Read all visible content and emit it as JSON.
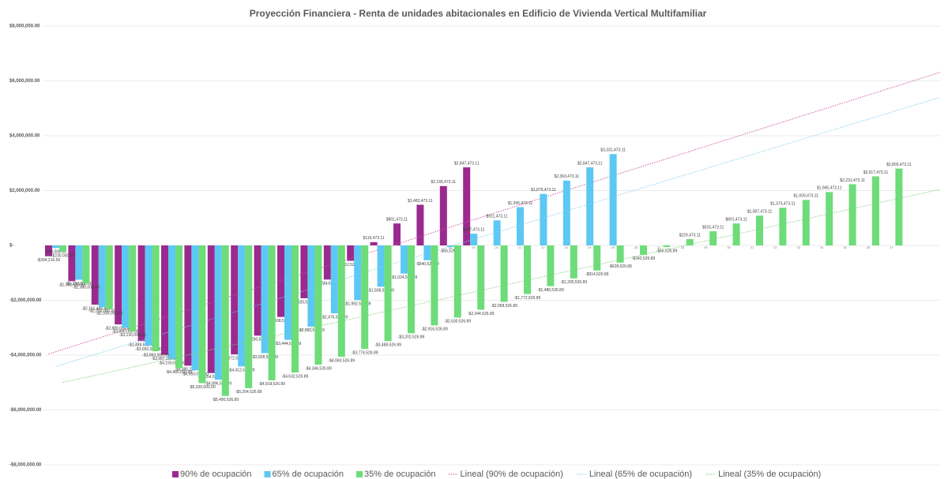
{
  "chart_data": {
    "type": "bar",
    "title": "Proyección Financiera - Renta de unidades abitacionales en Edificio de Vivienda Vertical Multifamiliar",
    "categories": [
      "1",
      "2",
      "3",
      "4",
      "5",
      "6",
      "7",
      "8",
      "9",
      "10",
      "11",
      "12",
      "13",
      "14",
      "15",
      "16",
      "17",
      "18",
      "19",
      "20",
      "21",
      "22",
      "23",
      "24",
      "25",
      "26",
      "27",
      "28",
      "29",
      "30",
      "31",
      "32",
      "33",
      "34",
      "35",
      "36",
      "37"
    ],
    "ylim": [
      -8000000,
      8000000
    ],
    "yticks": [
      {
        "value": -8000000,
        "label": "-$8,000,000.00"
      },
      {
        "value": -6000000,
        "label": "-$6,000,000.00"
      },
      {
        "value": -4000000,
        "label": "-$4,000,000.00"
      },
      {
        "value": -2000000,
        "label": "-$2,000,000.00"
      },
      {
        "value": 0,
        "label": "$-"
      },
      {
        "value": 2000000,
        "label": "$2,000,000.00"
      },
      {
        "value": 4000000,
        "label": "$4,000,000.00"
      },
      {
        "value": 6000000,
        "label": "$6,000,000.00"
      },
      {
        "value": 8000000,
        "label": "$8,000,000.00"
      }
    ],
    "grid": true,
    "legend": "bottom",
    "series": [
      {
        "name": "90% de ocupación",
        "color": "#9b2a8e",
        "trendline": {
          "name": "Lineal (90% de ocupación)",
          "color": "#c8509f"
        },
        "values": [
          -394216.56,
          -1302633.83,
          -2161449.44,
          -2880064.66,
          -3488683.44,
          -3987295.98,
          -4385213.46,
          -4654526.89,
          -3972526.89,
          -3290526.89,
          -2608526.89,
          -1926526.89,
          -1244526.89,
          -562526.89,
          119473.11,
          801473.11,
          1483473.11,
          2165473.11,
          2847473.11,
          null,
          null,
          null,
          null,
          null,
          null,
          null,
          null,
          null,
          null,
          null,
          null,
          null,
          null,
          null,
          null,
          null,
          null
        ],
        "value_labels": [
          "-$394,216.56",
          "-$1,302,633.83",
          "-$2,161,449.44",
          "-$2,880,064.66",
          "-$3,488,683.44",
          "-$3,987,295.98",
          "-$4,385,213.46",
          "-$4,654,526.89",
          "-$3,972,526.89",
          "-$3,290,526.89",
          "-$2,608,526.89",
          "-$1,926,526.89",
          "-$1,244,526.89",
          "-$562,526.89",
          "$119,473.11",
          "$801,473.11",
          "$1,483,473.11",
          "$2,165,473.11",
          "$2,847,473.11",
          null,
          null,
          null,
          null,
          null,
          null,
          null,
          null,
          null,
          null,
          null,
          null,
          null,
          null,
          null,
          null,
          null,
          null
        ]
      },
      {
        "name": "65% de ocupación",
        "color": "#5cc8f4",
        "trendline": {
          "name": "Lineal (65% de ocupación)",
          "color": "#80cdee"
        },
        "values": [
          -90000,
          -1250000,
          -2250000,
          -3000000,
          -3650000,
          -4150000,
          -4550000,
          -4896526.89,
          -4412526.89,
          -3928526.89,
          -3444526.89,
          -2960526.89,
          -2476526.89,
          -1992526.89,
          -1508526.89,
          -1024526.89,
          -540526.89,
          -56526.89,
          427473.11,
          911473.11,
          1395473.11,
          1879473.11,
          2363473.11,
          2847473.11,
          3331473.11,
          null,
          null,
          null,
          null,
          null,
          null,
          null,
          null,
          null,
          null,
          null,
          null
        ],
        "value_labels": [
          "-$90,000.00",
          "-$1,250,000.00",
          "-$2,250,000.00",
          "-$3,000,000.00",
          "-$3,650,000.00",
          "-$4,150,000.00",
          "-$4,550,000.00",
          "-$4,896,526.89",
          "-$4,412,526.89",
          "-$3,928,526.89",
          "-$3,444,526.89",
          "-$2,960,526.89",
          "-$2,476,526.89",
          "-$1,992,526.89",
          "-$1,508,526.89",
          "-$1,024,526.89",
          "-$540,526.89",
          "-$56,526.89",
          "$427,473.11",
          "$911,473.11",
          "$1,395,473.11",
          "$1,879,473.11",
          "$2,363,473.11",
          "$2,847,473.11",
          "$3,331,473.11",
          null,
          null,
          null,
          null,
          null,
          null,
          null,
          null,
          null,
          null,
          null,
          null
        ]
      },
      {
        "name": "35% de ocupación",
        "color": "#6ddc79",
        "trendline": {
          "name": "Lineal (35% de ocupación)",
          "color": "#7ccf7c"
        },
        "values": [
          -230000,
          -1380000,
          -2330000,
          -3130000,
          -3860000,
          -4480000,
          -5020000,
          -5490526.89,
          -5204526.89,
          -4918526.89,
          -4632526.89,
          -4346526.89,
          -4060526.89,
          -3774526.89,
          -3488526.89,
          -3202526.89,
          -2916526.89,
          -2630526.89,
          -2344526.89,
          -2058526.89,
          -1772526.89,
          -1486526.89,
          -1200526.89,
          -914526.89,
          -628526.89,
          -342526.89,
          -56526.89,
          229473.11,
          515473.11,
          801473.11,
          1087473.11,
          1373473.11,
          1659473.11,
          1945473.11,
          2231473.11,
          2517473.11,
          2803473.11
        ],
        "value_labels": [
          "-$230,000.00",
          "-$1,380,000.00",
          "-$2,330,000.00",
          "-$3,130,000.00",
          "-$3,860,000.00",
          "-$4,480,000.00",
          "-$5,020,000.00",
          "-$5,490,526.89",
          "-$5,204,526.89",
          "-$4,918,526.89",
          "-$4,632,526.89",
          "-$4,346,526.89",
          "-$4,060,526.89",
          "-$3,774,526.89",
          "-$3,488,526.89",
          "-$3,202,526.89",
          "-$2,916,526.89",
          "-$2,630,526.89",
          "-$2,344,526.89",
          "-$2,058,526.89",
          "-$1,772,526.89",
          "-$1,486,526.89",
          "-$1,200,526.89",
          "-$914,526.89",
          "-$628,526.89",
          "-$342,526.89",
          "-$56,526.89",
          "$229,473.11",
          "$515,473.11",
          "$801,473.11",
          "$1,087,473.11",
          "$1,373,473.11",
          "$1,659,473.11",
          "$1,945,473.11",
          "$2,231,473.11",
          "$2,517,473.11",
          "$2,803,473.11"
        ]
      }
    ]
  }
}
